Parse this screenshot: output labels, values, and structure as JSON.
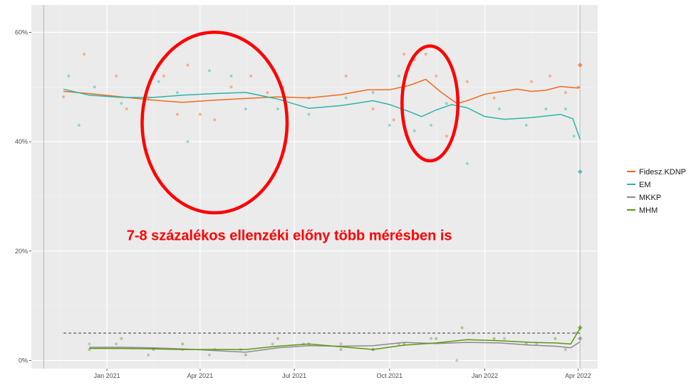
{
  "chart_data": {
    "type": "line",
    "title": "",
    "xlabel": "",
    "ylabel": "",
    "x_domain": [
      "2020-10-20",
      "2022-04-20"
    ],
    "ylim": [
      -1.5,
      65
    ],
    "x_ticks": [
      {
        "date": "2021-01-01",
        "label": "Jan 2021"
      },
      {
        "date": "2021-04-01",
        "label": "Apr 2021"
      },
      {
        "date": "2021-07-01",
        "label": "Jul 2021"
      },
      {
        "date": "2021-10-01",
        "label": "Oct 2021"
      },
      {
        "date": "2022-01-01",
        "label": "Jan 2022"
      },
      {
        "date": "2022-04-01",
        "label": "Apr 2022"
      }
    ],
    "y_ticks": [
      {
        "value": 0,
        "label": "0%"
      },
      {
        "value": 20,
        "label": "20%"
      },
      {
        "value": 40,
        "label": "40%"
      },
      {
        "value": 60,
        "label": "60%"
      }
    ],
    "vertical_lines": [
      {
        "date": "2020-11-01",
        "color": "#bdbdbd"
      },
      {
        "date": "2022-04-03",
        "color": "#c8c8c8"
      }
    ],
    "threshold_line": {
      "value": 5,
      "style": "dashed"
    },
    "grid": true,
    "legend_position": "right",
    "annotation": {
      "text": "7-8 százalékos ellenzéki előny több mérésben is",
      "color": "#ff0000",
      "date": "2021-01-20",
      "value": 22
    },
    "highlight_ellipses": [
      {
        "center_date": "2021-04-15",
        "center_value": 43.5,
        "half_width_days": 70,
        "half_height": 16.5
      },
      {
        "center_date": "2021-11-09",
        "center_value": 47,
        "half_width_days": 27,
        "half_height": 10.5
      }
    ],
    "series": [
      {
        "name": "Fidesz.KDNP",
        "color": "#f26b1d",
        "line": [
          [
            "2020-11-20",
            49.2
          ],
          [
            "2020-12-15",
            48.8
          ],
          [
            "2021-01-15",
            48.2
          ],
          [
            "2021-02-15",
            47.6
          ],
          [
            "2021-03-15",
            47.2
          ],
          [
            "2021-04-15",
            47.6
          ],
          [
            "2021-05-15",
            47.9
          ],
          [
            "2021-06-15",
            48.2
          ],
          [
            "2021-07-15",
            48.0
          ],
          [
            "2021-08-15",
            48.6
          ],
          [
            "2021-09-10",
            49.5
          ],
          [
            "2021-10-01",
            49.5
          ],
          [
            "2021-10-20",
            50.3
          ],
          [
            "2021-11-05",
            51.4
          ],
          [
            "2021-11-20",
            49.0
          ],
          [
            "2021-12-05",
            47.0
          ],
          [
            "2021-12-15",
            47.5
          ],
          [
            "2022-01-01",
            48.7
          ],
          [
            "2022-02-01",
            49.6
          ],
          [
            "2022-02-15",
            49.2
          ],
          [
            "2022-03-01",
            49.4
          ],
          [
            "2022-03-15",
            50.1
          ],
          [
            "2022-04-01",
            49.8
          ],
          [
            "2022-04-03",
            50.0
          ]
        ],
        "points": [
          [
            "2020-11-20",
            48.2
          ],
          [
            "2020-12-10",
            56.0
          ],
          [
            "2021-01-10",
            52.0
          ],
          [
            "2021-01-20",
            46.0
          ],
          [
            "2021-02-10",
            48.0
          ],
          [
            "2021-02-25",
            52.0
          ],
          [
            "2021-03-10",
            45.0
          ],
          [
            "2021-03-20",
            54.0
          ],
          [
            "2021-04-01",
            45.0
          ],
          [
            "2021-04-15",
            44.0
          ],
          [
            "2021-05-01",
            50.0
          ],
          [
            "2021-05-20",
            52.0
          ],
          [
            "2021-06-05",
            49.0
          ],
          [
            "2021-06-20",
            50.0
          ],
          [
            "2021-07-15",
            48.0
          ],
          [
            "2021-08-20",
            52.0
          ],
          [
            "2021-09-15",
            46.0
          ],
          [
            "2021-10-05",
            44.0
          ],
          [
            "2021-10-15",
            56.0
          ],
          [
            "2021-10-25",
            55.0
          ],
          [
            "2021-11-05",
            56.0
          ],
          [
            "2021-11-15",
            52.0
          ],
          [
            "2021-11-25",
            41.0
          ],
          [
            "2021-12-15",
            51.0
          ],
          [
            "2022-01-10",
            48.0
          ],
          [
            "2022-02-15",
            51.0
          ],
          [
            "2022-03-05",
            52.0
          ],
          [
            "2022-03-20",
            49.0
          ],
          [
            "2022-04-01",
            50.0
          ],
          [
            "2022-04-03",
            54.0
          ]
        ]
      },
      {
        "name": "EM",
        "color": "#2bb5a8",
        "line": [
          [
            "2020-11-20",
            49.6
          ],
          [
            "2020-12-15",
            48.5
          ],
          [
            "2021-01-15",
            48.1
          ],
          [
            "2021-02-15",
            48.1
          ],
          [
            "2021-03-15",
            48.5
          ],
          [
            "2021-04-15",
            48.8
          ],
          [
            "2021-05-15",
            49.0
          ],
          [
            "2021-06-15",
            47.8
          ],
          [
            "2021-07-15",
            46.1
          ],
          [
            "2021-08-15",
            46.6
          ],
          [
            "2021-09-15",
            47.5
          ],
          [
            "2021-10-01",
            46.8
          ],
          [
            "2021-10-20",
            45.5
          ],
          [
            "2021-11-01",
            44.6
          ],
          [
            "2021-11-15",
            45.8
          ],
          [
            "2021-11-30",
            46.8
          ],
          [
            "2021-12-15",
            46.2
          ],
          [
            "2022-01-01",
            44.6
          ],
          [
            "2022-01-20",
            44.1
          ],
          [
            "2022-02-15",
            44.4
          ],
          [
            "2022-03-15",
            45.0
          ],
          [
            "2022-03-27",
            44.2
          ],
          [
            "2022-04-03",
            40.4
          ]
        ],
        "points": [
          [
            "2020-11-25",
            52.0
          ],
          [
            "2020-12-05",
            43.0
          ],
          [
            "2020-12-20",
            50.0
          ],
          [
            "2021-01-15",
            47.0
          ],
          [
            "2021-02-20",
            51.0
          ],
          [
            "2021-03-10",
            49.0
          ],
          [
            "2021-03-20",
            40.0
          ],
          [
            "2021-04-10",
            53.0
          ],
          [
            "2021-05-01",
            52.0
          ],
          [
            "2021-05-15",
            46.0
          ],
          [
            "2021-06-15",
            46.0
          ],
          [
            "2021-07-15",
            45.0
          ],
          [
            "2021-08-20",
            48.0
          ],
          [
            "2021-09-15",
            49.0
          ],
          [
            "2021-10-01",
            43.0
          ],
          [
            "2021-10-10",
            52.0
          ],
          [
            "2021-10-25",
            42.0
          ],
          [
            "2021-11-10",
            43.0
          ],
          [
            "2021-11-25",
            47.0
          ],
          [
            "2021-12-15",
            36.0
          ],
          [
            "2022-01-15",
            46.0
          ],
          [
            "2022-02-10",
            43.0
          ],
          [
            "2022-03-01",
            46.0
          ],
          [
            "2022-03-20",
            46.0
          ],
          [
            "2022-03-28",
            41.0
          ],
          [
            "2022-04-03",
            34.5
          ]
        ]
      },
      {
        "name": "MKKP",
        "color": "#8c8c8c",
        "line": [
          [
            "2020-12-15",
            2.4
          ],
          [
            "2021-01-15",
            2.4
          ],
          [
            "2021-02-15",
            2.3
          ],
          [
            "2021-03-15",
            2.1
          ],
          [
            "2021-04-15",
            1.8
          ],
          [
            "2021-05-15",
            1.5
          ],
          [
            "2021-06-15",
            2.3
          ],
          [
            "2021-07-15",
            2.7
          ],
          [
            "2021-08-15",
            2.6
          ],
          [
            "2021-09-15",
            2.7
          ],
          [
            "2021-10-15",
            3.3
          ],
          [
            "2021-11-15",
            3.1
          ],
          [
            "2021-12-15",
            3.3
          ],
          [
            "2022-01-15",
            3.2
          ],
          [
            "2022-02-15",
            2.8
          ],
          [
            "2022-03-10",
            2.6
          ],
          [
            "2022-03-25",
            2.3
          ],
          [
            "2022-04-03",
            3.4
          ]
        ],
        "points": [
          [
            "2020-12-15",
            3.0
          ],
          [
            "2021-01-10",
            3.0
          ],
          [
            "2021-02-10",
            1.0
          ],
          [
            "2021-03-15",
            2.0
          ],
          [
            "2021-04-10",
            1.0
          ],
          [
            "2021-05-10",
            2.0
          ],
          [
            "2021-06-10",
            3.0
          ],
          [
            "2021-07-10",
            3.0
          ],
          [
            "2021-08-15",
            3.0
          ],
          [
            "2021-09-15",
            2.0
          ],
          [
            "2021-10-10",
            3.0
          ],
          [
            "2021-11-10",
            4.0
          ],
          [
            "2021-12-05",
            0.0
          ],
          [
            "2021-12-20",
            5.0
          ],
          [
            "2022-01-20",
            4.0
          ],
          [
            "2022-02-20",
            3.0
          ],
          [
            "2022-03-20",
            2.0
          ],
          [
            "2022-04-03",
            4.0
          ]
        ]
      },
      {
        "name": "MHM",
        "color": "#5a9a12",
        "line": [
          [
            "2020-12-15",
            2.2
          ],
          [
            "2021-01-15",
            2.2
          ],
          [
            "2021-02-15",
            2.1
          ],
          [
            "2021-03-15",
            2.0
          ],
          [
            "2021-04-15",
            2.0
          ],
          [
            "2021-05-15",
            2.0
          ],
          [
            "2021-06-15",
            2.6
          ],
          [
            "2021-07-15",
            3.0
          ],
          [
            "2021-08-15",
            2.5
          ],
          [
            "2021-09-15",
            2.0
          ],
          [
            "2021-10-15",
            2.8
          ],
          [
            "2021-11-15",
            3.2
          ],
          [
            "2021-12-15",
            3.8
          ],
          [
            "2022-01-15",
            3.6
          ],
          [
            "2022-02-15",
            3.3
          ],
          [
            "2022-03-10",
            3.2
          ],
          [
            "2022-03-25",
            3.0
          ],
          [
            "2022-04-03",
            5.9
          ]
        ],
        "points": [
          [
            "2020-12-15",
            2.0
          ],
          [
            "2021-01-15",
            4.0
          ],
          [
            "2021-02-15",
            2.0
          ],
          [
            "2021-03-15",
            3.0
          ],
          [
            "2021-04-15",
            2.0
          ],
          [
            "2021-05-15",
            1.0
          ],
          [
            "2021-06-15",
            4.0
          ],
          [
            "2021-07-15",
            3.0
          ],
          [
            "2021-08-15",
            2.0
          ],
          [
            "2021-09-15",
            2.0
          ],
          [
            "2021-10-15",
            3.0
          ],
          [
            "2021-11-15",
            4.0
          ],
          [
            "2021-12-10",
            6.0
          ],
          [
            "2022-01-10",
            4.0
          ],
          [
            "2022-02-10",
            3.0
          ],
          [
            "2022-03-10",
            4.0
          ],
          [
            "2022-03-30",
            5.0
          ],
          [
            "2022-04-03",
            6.0
          ]
        ]
      }
    ]
  }
}
